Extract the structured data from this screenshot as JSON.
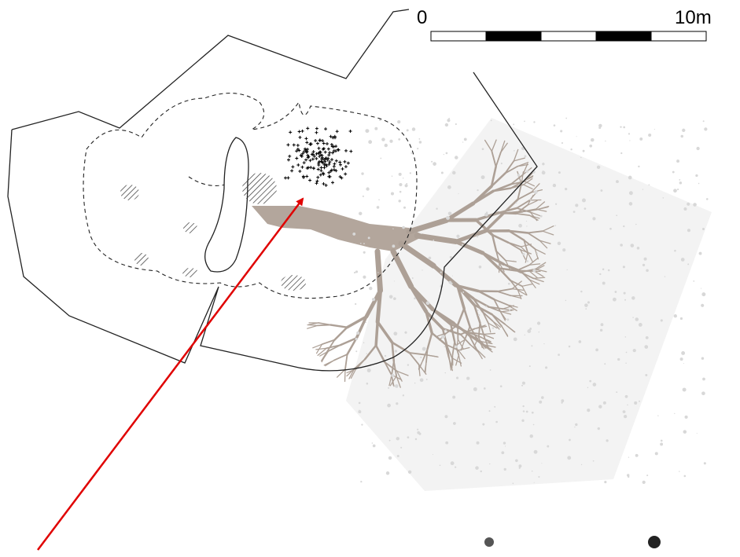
{
  "scale_bar": {
    "start_label": "0",
    "end_label": "10m"
  }
}
